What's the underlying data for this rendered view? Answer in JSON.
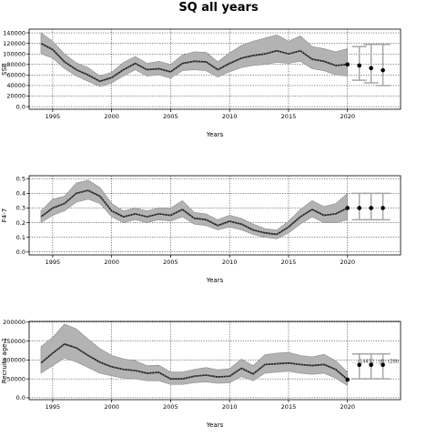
{
  "figure": {
    "title": "SQ all years"
  },
  "colors": {
    "band": "#b3b3b3",
    "band_edge": "#8c8c8c",
    "line": "#111111",
    "dotted_line": "#777777",
    "forecast_bar": "#a6a6a6",
    "point": "#000000",
    "grid": "#000000"
  },
  "chart_data": [
    {
      "type": "line",
      "title": "",
      "xlabel": "Years",
      "ylabel": "SSB",
      "ylabel_overlap": "",
      "grid": true,
      "xlim": [
        1993,
        2024.5
      ],
      "ylim": [
        -5000,
        147000
      ],
      "xticks": [
        1995,
        2000,
        2005,
        2010,
        2015,
        2020
      ],
      "yticks": [
        0,
        20000,
        40000,
        60000,
        80000,
        100000,
        120000,
        140000
      ],
      "series": [
        {
          "x": [
            1994,
            1995,
            1996,
            1997,
            1998,
            1999,
            2000,
            2001,
            2002,
            2003,
            2004,
            2005,
            2006,
            2007,
            2008,
            2009,
            2010,
            2011,
            2012,
            2013,
            2014,
            2015,
            2016,
            2017,
            2018,
            2019,
            2020
          ],
          "estimate": [
            120000,
            108000,
            85000,
            70000,
            60000,
            48000,
            55000,
            70000,
            82000,
            70000,
            72000,
            66000,
            82000,
            86000,
            85000,
            70000,
            82000,
            92000,
            97000,
            100000,
            106000,
            100000,
            106000,
            90000,
            86000,
            78000,
            80000
          ],
          "upper": [
            140000,
            124000,
            100000,
            83000,
            74000,
            58000,
            65000,
            84000,
            95000,
            82000,
            86000,
            80000,
            98000,
            104000,
            103000,
            85000,
            102000,
            116000,
            124000,
            130000,
            136000,
            124000,
            134000,
            114000,
            110000,
            104000,
            110000
          ],
          "lower": [
            100000,
            92000,
            72000,
            58000,
            48000,
            38000,
            45000,
            58000,
            70000,
            58000,
            60000,
            54000,
            68000,
            70000,
            68000,
            56000,
            66000,
            74000,
            78000,
            80000,
            84000,
            82000,
            86000,
            72000,
            68000,
            60000,
            58000
          ]
        }
      ],
      "forecast": {
        "x": [
          2021,
          2022,
          2023
        ],
        "values": [
          78000,
          73000,
          69000
        ],
        "upper": [
          114000,
          118000,
          118000
        ],
        "lower": [
          50000,
          45000,
          40000
        ]
      },
      "annotations": []
    },
    {
      "type": "line",
      "title": "",
      "xlabel": "Years",
      "ylabel": "F4-7",
      "ylabel_overlap": "",
      "grid": true,
      "xlim": [
        1993,
        2024.5
      ],
      "ylim": [
        -0.02,
        0.52
      ],
      "xticks": [
        1995,
        2000,
        2005,
        2010,
        2015,
        2020
      ],
      "yticks": [
        0.0,
        0.1,
        0.2,
        0.3,
        0.4,
        0.5
      ],
      "series": [
        {
          "x": [
            1994,
            1995,
            1996,
            1997,
            1998,
            1999,
            2000,
            2001,
            2002,
            2003,
            2004,
            2005,
            2006,
            2007,
            2008,
            2009,
            2010,
            2011,
            2012,
            2013,
            2014,
            2015,
            2016,
            2017,
            2018,
            2019,
            2020
          ],
          "estimate": [
            0.24,
            0.3,
            0.33,
            0.4,
            0.42,
            0.38,
            0.28,
            0.24,
            0.26,
            0.24,
            0.26,
            0.25,
            0.29,
            0.23,
            0.22,
            0.18,
            0.21,
            0.19,
            0.15,
            0.13,
            0.12,
            0.17,
            0.24,
            0.29,
            0.25,
            0.26,
            0.3
          ],
          "upper": [
            0.28,
            0.36,
            0.38,
            0.47,
            0.49,
            0.44,
            0.33,
            0.28,
            0.3,
            0.28,
            0.3,
            0.3,
            0.35,
            0.27,
            0.26,
            0.22,
            0.25,
            0.23,
            0.19,
            0.16,
            0.15,
            0.21,
            0.29,
            0.35,
            0.31,
            0.33,
            0.4
          ],
          "lower": [
            0.2,
            0.25,
            0.28,
            0.34,
            0.36,
            0.33,
            0.24,
            0.2,
            0.22,
            0.2,
            0.22,
            0.21,
            0.24,
            0.19,
            0.18,
            0.15,
            0.17,
            0.15,
            0.12,
            0.1,
            0.09,
            0.13,
            0.19,
            0.24,
            0.2,
            0.2,
            0.22
          ]
        }
      ],
      "forecast": {
        "x": [
          2021,
          2022,
          2023
        ],
        "values": [
          0.3,
          0.3,
          0.3
        ],
        "upper": [
          0.4,
          0.4,
          0.4
        ],
        "lower": [
          0.22,
          0.22,
          0.22
        ]
      },
      "annotations": []
    },
    {
      "type": "line",
      "title": "",
      "xlabel": "Years",
      "ylabel": "Recruits age 1",
      "ylabel_overlap": "",
      "grid": true,
      "xlim": [
        1993,
        2024.5
      ],
      "ylim": [
        -5000,
        202000
      ],
      "xticks": [
        1995,
        2000,
        2005,
        2010,
        2015,
        2020
      ],
      "yticks": [
        0,
        50000,
        100000,
        150000,
        200000
      ],
      "series": [
        {
          "x": [
            1994,
            1995,
            1996,
            1997,
            1998,
            1999,
            2000,
            2001,
            2002,
            2003,
            2004,
            2005,
            2006,
            2007,
            2008,
            2009,
            2010,
            2011,
            2012,
            2013,
            2014,
            2015,
            2016,
            2017,
            2018,
            2019,
            2020
          ],
          "estimate": [
            92000,
            118000,
            142000,
            132000,
            112000,
            94000,
            82000,
            75000,
            72000,
            65000,
            67000,
            50000,
            50000,
            57000,
            60000,
            55000,
            57000,
            78000,
            63000,
            88000,
            90000,
            92000,
            88000,
            85000,
            88000,
            75000,
            48000
          ],
          "upper": [
            135000,
            160000,
            195000,
            182000,
            155000,
            130000,
            112000,
            103000,
            98000,
            85000,
            86000,
            68000,
            68000,
            75000,
            80000,
            74000,
            77000,
            102000,
            85000,
            114000,
            118000,
            120000,
            112000,
            108000,
            115000,
            98000,
            68000
          ],
          "lower": [
            65000,
            85000,
            105000,
            95000,
            80000,
            65000,
            58000,
            52000,
            50000,
            45000,
            45000,
            35000,
            35000,
            40000,
            42000,
            38000,
            40000,
            56000,
            45000,
            65000,
            68000,
            70000,
            65000,
            62000,
            65000,
            52000,
            32000
          ]
        }
      ],
      "forecast": {
        "x": [
          2021,
          2022,
          2023
        ],
        "values": [
          87000,
          87000,
          87000
        ],
        "upper": [
          116000,
          116000,
          116000
        ],
        "lower": [
          50000,
          50000,
          50000
        ]
      },
      "annotations": [
        "… r14432 ; glt: c28b"
      ]
    }
  ]
}
